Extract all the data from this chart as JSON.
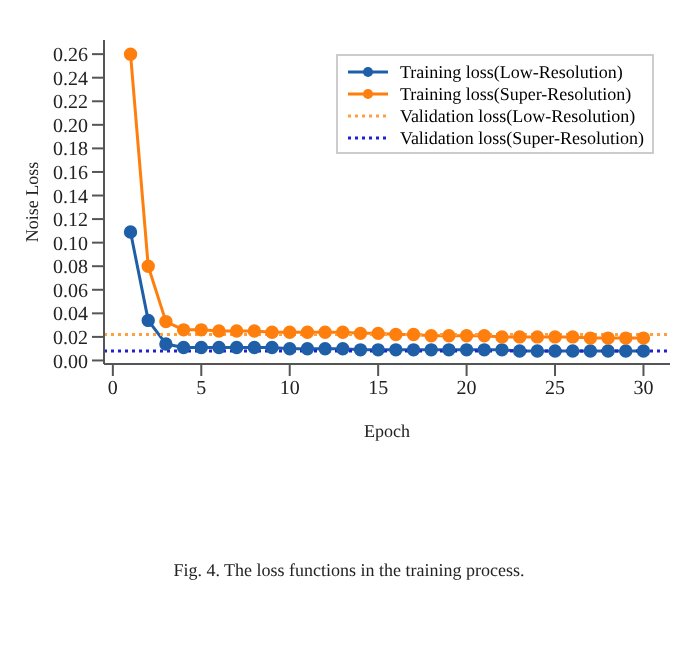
{
  "chart_data": {
    "type": "line",
    "xlabel": "Epoch",
    "ylabel": "Noise Loss",
    "annotations": [
      "Fig. 4. The loss functions in the training process."
    ],
    "series": [
      {
        "name": "Training loss(Low-Resolution)",
        "color": "#1f5fa8",
        "marker": "circle",
        "line_style": "solid",
        "x": [
          1,
          2,
          3,
          4,
          5,
          6,
          7,
          8,
          9,
          10,
          11,
          12,
          13,
          14,
          15,
          16,
          17,
          18,
          19,
          20,
          21,
          22,
          23,
          24,
          25,
          26,
          27,
          28,
          29,
          30
        ],
        "values": [
          0.109,
          0.034,
          0.014,
          0.011,
          0.011,
          0.011,
          0.011,
          0.011,
          0.011,
          0.01,
          0.01,
          0.01,
          0.01,
          0.009,
          0.009,
          0.009,
          0.009,
          0.009,
          0.009,
          0.009,
          0.009,
          0.009,
          0.008,
          0.008,
          0.008,
          0.008,
          0.008,
          0.008,
          0.008,
          0.008
        ]
      },
      {
        "name": "Training loss(Super-Resolution)",
        "color": "#ff7f0e",
        "marker": "circle",
        "line_style": "solid",
        "x": [
          1,
          2,
          3,
          4,
          5,
          6,
          7,
          8,
          9,
          10,
          11,
          12,
          13,
          14,
          15,
          16,
          17,
          18,
          19,
          20,
          21,
          22,
          23,
          24,
          25,
          26,
          27,
          28,
          29,
          30
        ],
        "values": [
          0.26,
          0.08,
          0.033,
          0.026,
          0.026,
          0.025,
          0.025,
          0.025,
          0.024,
          0.024,
          0.024,
          0.024,
          0.024,
          0.023,
          0.023,
          0.022,
          0.022,
          0.021,
          0.021,
          0.021,
          0.021,
          0.02,
          0.02,
          0.02,
          0.02,
          0.02,
          0.019,
          0.019,
          0.019,
          0.019
        ]
      },
      {
        "name": "Validation loss(Low-Resolution)",
        "color": "#ffa040",
        "marker": "none",
        "line_style": "dotted",
        "x": [
          -0.5,
          31.5
        ],
        "values": [
          0.022,
          0.022
        ]
      },
      {
        "name": "Validation loss(Super-Resolution)",
        "color": "#2020d0",
        "marker": "none",
        "line_style": "dotted",
        "x": [
          -0.5,
          31.5
        ],
        "values": [
          0.008,
          0.008
        ]
      }
    ],
    "xlim": [
      -0.5,
      31.5
    ],
    "xticks": [
      0,
      5,
      10,
      15,
      20,
      25,
      30
    ],
    "ylim": [
      -0.003,
      0.272
    ],
    "yticks": [
      {
        "value": 0,
        "label": "0.00"
      },
      {
        "value": 0.02,
        "label": "0.02"
      },
      {
        "value": 0.04,
        "label": "0.04"
      },
      {
        "value": 0.06,
        "label": "0.06"
      },
      {
        "value": 0.08,
        "label": "0.08"
      },
      {
        "value": 0.1,
        "label": "0.10"
      },
      {
        "value": 0.12,
        "label": "0.12"
      },
      {
        "value": 0.14,
        "label": "0.14"
      },
      {
        "value": 0.16,
        "label": "0.16"
      },
      {
        "value": 0.18,
        "label": "0.18"
      },
      {
        "value": 0.2,
        "label": "0.20"
      },
      {
        "value": 0.22,
        "label": "0.22"
      },
      {
        "value": 0.24,
        "label": "0.24"
      },
      {
        "value": 0.26,
        "label": "0.26"
      }
    ],
    "grid": false,
    "legend": "top right"
  }
}
